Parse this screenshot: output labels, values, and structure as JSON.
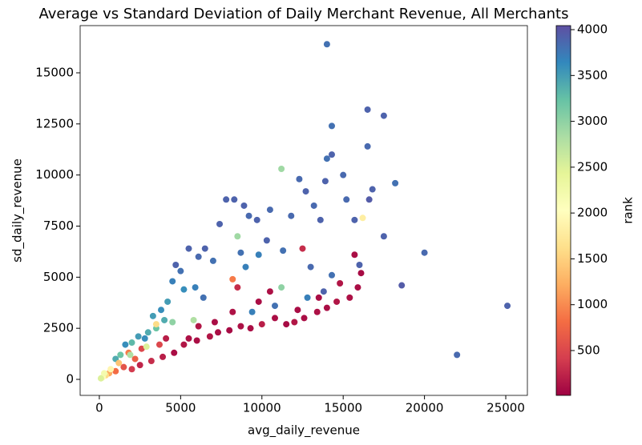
{
  "chart_data": {
    "type": "scatter",
    "title": "Average vs Standard Deviation of Daily Merchant Revenue, All Merchants",
    "xlabel": "avg_daily_revenue",
    "ylabel": "sd_daily_revenue",
    "colorbar_label": "rank",
    "x": [
      14000,
      16500,
      17500,
      14300,
      16500,
      14300,
      11200,
      14000,
      15000,
      12300,
      13900,
      18200,
      16800,
      16600,
      20000,
      18600,
      25100,
      22000,
      17500,
      16200,
      12500,
      8200,
      8500,
      11200,
      7800,
      8300,
      7400,
      6500,
      8900,
      9200,
      9700,
      10500,
      11800,
      12700,
      13200,
      13600,
      15700,
      15200,
      10300,
      11300,
      9800,
      8700,
      8500,
      9000,
      7000,
      5500,
      6100,
      5000,
      4700,
      4500,
      5200,
      5900,
      6400,
      4200,
      3800,
      3300,
      4000,
      3500,
      3000,
      2800,
      2400,
      2000,
      1600,
      1300,
      1000,
      4500,
      5800,
      9400,
      10800,
      12800,
      13800,
      14300,
      13000,
      16000,
      4600,
      5200,
      6000,
      6800,
      7300,
      8000,
      8700,
      9300,
      10000,
      10800,
      11500,
      12000,
      12600,
      13400,
      14000,
      14600,
      15400,
      15900,
      16100,
      15700,
      14800,
      13500,
      12200,
      10500,
      9800,
      8200,
      7100,
      6100,
      5500,
      3900,
      3200,
      2500,
      2000,
      1500,
      1000,
      1800,
      2200,
      2600,
      600,
      400,
      200,
      100,
      700,
      300,
      1200,
      3500,
      2900,
      1900,
      4100,
      3700
    ],
    "values": [
      16400,
      13200,
      12900,
      12400,
      11400,
      11000,
      10300,
      10800,
      10000,
      9800,
      9700,
      9600,
      9300,
      8800,
      6200,
      4600,
      3600,
      1200,
      7000,
      7900,
      6400,
      4900,
      4500,
      4500,
      8800,
      8800,
      7600,
      6400,
      8500,
      8000,
      7800,
      8300,
      8000,
      9200,
      8500,
      7800,
      7800,
      8800,
      6800,
      6300,
      6100,
      6200,
      7000,
      5500,
      5800,
      6400,
      6000,
      5300,
      5600,
      4800,
      4400,
      4500,
      4000,
      3800,
      3400,
      3100,
      2900,
      2500,
      2300,
      2000,
      2100,
      1800,
      1700,
      1200,
      1000,
      2800,
      2900,
      3300,
      3600,
      4000,
      4300,
      5100,
      5500,
      5600,
      1300,
      1700,
      1900,
      2100,
      2300,
      2400,
      2600,
      2500,
      2700,
      3000,
      2700,
      2800,
      3000,
      3300,
      3500,
      3800,
      4000,
      4500,
      5200,
      6100,
      4700,
      4000,
      3400,
      4300,
      3800,
      3300,
      2800,
      2600,
      2000,
      1100,
      900,
      700,
      500,
      600,
      400,
      1300,
      1000,
      1500,
      300,
      200,
      100,
      50,
      500,
      300,
      800,
      2700,
      1600,
      1200,
      2000,
      1700
    ],
    "rank": [
      3800,
      3900,
      3900,
      3800,
      3850,
      3900,
      2900,
      3800,
      3850,
      3850,
      3900,
      3800,
      3900,
      3950,
      3850,
      3950,
      3900,
      3850,
      3900,
      1800,
      300,
      900,
      300,
      3000,
      3900,
      3900,
      3900,
      3900,
      3900,
      3850,
      3900,
      3850,
      3850,
      3900,
      3850,
      3900,
      3900,
      3850,
      3900,
      3800,
      3700,
      3800,
      2900,
      3700,
      3800,
      3900,
      3850,
      3800,
      3900,
      3700,
      3600,
      3700,
      3800,
      3500,
      3600,
      3500,
      3400,
      3200,
      3400,
      3600,
      3500,
      3300,
      3600,
      3200,
      3400,
      3000,
      2800,
      3700,
      3800,
      3700,
      3900,
      3800,
      3850,
      3900,
      100,
      150,
      100,
      150,
      100,
      80,
      120,
      100,
      200,
      100,
      80,
      150,
      100,
      120,
      100,
      150,
      120,
      100,
      80,
      100,
      150,
      100,
      90,
      110,
      100,
      130,
      100,
      150,
      120,
      200,
      300,
      250,
      400,
      600,
      800,
      900,
      700,
      500,
      1200,
      1600,
      2000,
      2500,
      1900,
      2200,
      1400,
      1600,
      2500,
      2800,
      200,
      500
    ],
    "xlim": [
      -1180,
      26330
    ],
    "ylim": [
      -783,
      17310
    ],
    "clim": [
      11,
      4044
    ],
    "xticks": [
      0,
      5000,
      10000,
      15000,
      20000,
      25000
    ],
    "yticks": [
      0,
      2500,
      5000,
      7500,
      10000,
      12500,
      15000
    ],
    "cticks": [
      500,
      1000,
      1500,
      2000,
      2500,
      3000,
      3500,
      4000
    ],
    "colormap": [
      "#9e0142",
      "#d53e4f",
      "#f46d43",
      "#fdae61",
      "#fee08b",
      "#ffffbf",
      "#e6f598",
      "#abdda4",
      "#66c2a5",
      "#3288bd",
      "#5e4fa2"
    ]
  }
}
